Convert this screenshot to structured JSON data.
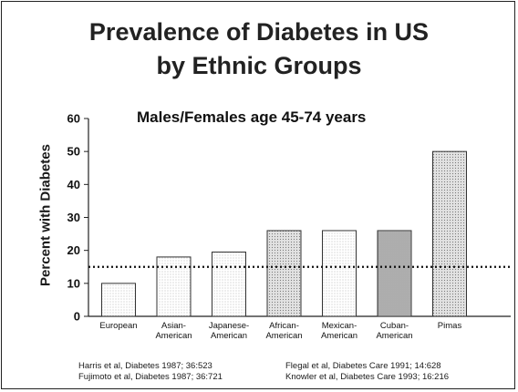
{
  "title_line1": "Prevalence of Diabetes in US",
  "title_line2": "by Ethnic Groups",
  "chart_data": {
    "type": "bar",
    "subtitle": "Males/Females age 45-74 years",
    "ylabel": "Percent with Diabetes",
    "xlabel": "",
    "ylim": [
      0,
      60
    ],
    "yticks": [
      0,
      10,
      20,
      30,
      40,
      50,
      60
    ],
    "categories": [
      [
        "European"
      ],
      [
        "Asian-",
        "American"
      ],
      [
        "Japanese-",
        "American"
      ],
      [
        "African-",
        "American"
      ],
      [
        "Mexican-",
        "American"
      ],
      [
        "Cuban-",
        "American"
      ],
      [
        "Pimas"
      ]
    ],
    "values": [
      10,
      18,
      19.5,
      26,
      26,
      26,
      50
    ],
    "bar_fills": [
      "#f6f6f6",
      "#f3f3f3",
      "#ececec",
      "#cfcfcf",
      "#dedede",
      "#bdbdbd",
      "#c9c9c9"
    ],
    "reference_line": 15,
    "grid": false,
    "legend": "none"
  },
  "references": {
    "left": [
      "Harris et al, Diabetes 1987; 36:523",
      "Fujimoto et al, Diabetes 1987; 36:721"
    ],
    "right": [
      "Flegal et al, Diabetes Care 1991; 14:628",
      "Knowler et al, Diabetes Care 1993; 16:216"
    ]
  }
}
